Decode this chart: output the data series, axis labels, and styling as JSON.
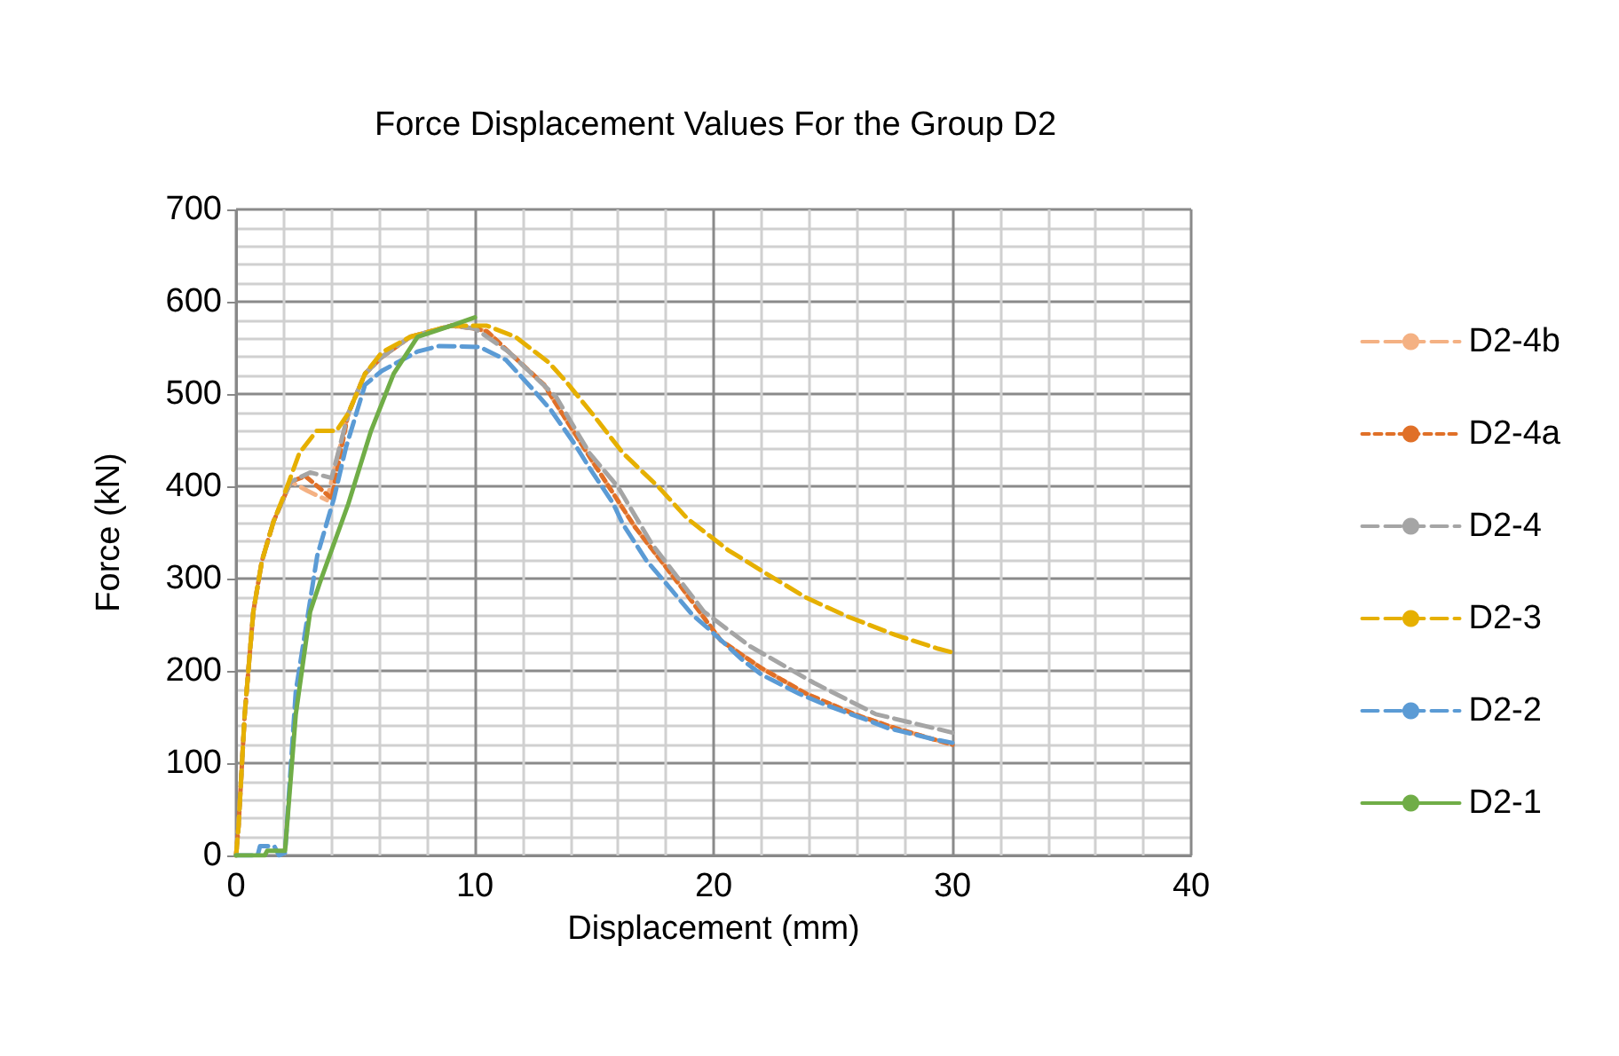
{
  "chart_data": {
    "type": "line",
    "title": "Force Displacement Values For the Group D2",
    "xlabel": "Displacement (mm)",
    "ylabel": "Force (kN)",
    "xlim": [
      0,
      40
    ],
    "xticks": [
      0,
      10,
      20,
      30,
      40
    ],
    "ylim": [
      0,
      700
    ],
    "yticks": [
      0,
      100,
      200,
      300,
      400,
      500,
      600,
      700
    ],
    "grid": true,
    "legend": "right",
    "marker": "none",
    "series": [
      {
        "name": "D2-4b",
        "color": "#f4b183",
        "line_style": "dashed",
        "x": [
          0,
          0.1,
          0.36,
          0.72,
          1.08,
          1.57,
          2.29,
          3.0,
          3.8,
          4.7,
          5.4,
          6.1,
          7.3,
          9.0,
          10.0,
          10.5,
          11.9,
          12.9,
          13.8,
          15.0,
          16.7,
          18.7,
          20.3,
          22.0,
          23.9,
          25.9,
          27.6,
          30.0
        ],
        "values": [
          0,
          31,
          153,
          264,
          319,
          362,
          405,
          395,
          385,
          479,
          522,
          540,
          562,
          574,
          571,
          568,
          534,
          510,
          473,
          424,
          356,
          289,
          233,
          203,
          175,
          153,
          138,
          120
        ]
      },
      {
        "name": "D2-4a",
        "color": "#e07028",
        "line_style": "dotted",
        "x": [
          0,
          0.1,
          0.36,
          0.72,
          1.08,
          1.57,
          2.29,
          2.9,
          4.0,
          4.7,
          5.4,
          6.1,
          7.3,
          9.0,
          10.0,
          10.5,
          11.9,
          12.9,
          13.8,
          15.0,
          16.7,
          18.7,
          20.3,
          22.0,
          23.9,
          25.9,
          27.6,
          30.0
        ],
        "values": [
          0,
          31,
          153,
          264,
          319,
          362,
          405,
          411,
          387,
          479,
          522,
          540,
          562,
          574,
          571,
          568,
          534,
          510,
          473,
          424,
          356,
          289,
          233,
          203,
          175,
          153,
          138,
          120
        ]
      },
      {
        "name": "D2-4",
        "color": "#a5a5a5",
        "line_style": "dashed",
        "x": [
          0,
          0.1,
          0.36,
          0.72,
          1.08,
          1.57,
          2.29,
          3.1,
          4.0,
          4.7,
          5.4,
          6.1,
          7.3,
          9.0,
          10.0,
          11.4,
          13.4,
          14.8,
          16.0,
          17.4,
          19.6,
          21.5,
          24.2,
          26.8,
          29.7,
          30.0
        ],
        "values": [
          0,
          31,
          153,
          264,
          319,
          362,
          405,
          415,
          409,
          479,
          522,
          540,
          562,
          574,
          571,
          546,
          497,
          436,
          399,
          338,
          264,
          227,
          187,
          153,
          135,
          133
        ]
      },
      {
        "name": "D2-3",
        "color": "#e6b000",
        "line_style": "dashed",
        "x": [
          0,
          0.1,
          0.36,
          0.72,
          1.08,
          1.57,
          2.0,
          2.65,
          3.37,
          4.2,
          4.7,
          5.4,
          6.1,
          7.3,
          9.0,
          10.5,
          11.7,
          13.1,
          13.8,
          15.0,
          16.2,
          17.7,
          18.9,
          20.6,
          22.1,
          23.9,
          25.6,
          27.6,
          29.4,
          30.0
        ],
        "values": [
          0,
          31,
          153,
          264,
          319,
          362,
          390,
          436,
          460,
          460,
          479,
          522,
          545,
          562,
          574,
          574,
          562,
          534,
          514,
          476,
          436,
          399,
          365,
          331,
          307,
          279,
          259,
          239,
          224,
          220
        ]
      },
      {
        "name": "D2-2",
        "color": "#5b9bd5",
        "line_style": "dashed",
        "x": [
          0,
          0.9,
          1.0,
          1.6,
          1.8,
          2.05,
          2.5,
          3.4,
          4.1,
          4.6,
          5.4,
          6.1,
          7.6,
          8.5,
          10.2,
          11.3,
          12.5,
          13.2,
          14.2,
          14.8,
          15.8,
          16.2,
          17.2,
          17.9,
          19.1,
          19.9,
          21.2,
          22.0,
          23.6,
          24.7,
          26.4,
          27.3,
          29.2,
          30.0
        ],
        "values": [
          0,
          0,
          10,
          10,
          0,
          3,
          178,
          325,
          387,
          442,
          510,
          525,
          546,
          552,
          551,
          537,
          503,
          482,
          445,
          420,
          381,
          359,
          319,
          298,
          261,
          243,
          212,
          196,
          175,
          163,
          147,
          138,
          126,
          122
        ]
      },
      {
        "name": "D2-1",
        "color": "#70ad47",
        "line_style": "solid",
        "x": [
          0,
          1.2,
          1.3,
          2.05,
          2.5,
          3.1,
          3.5,
          4.7,
          5.65,
          6.6,
          7.6,
          9.0,
          10.0
        ],
        "values": [
          0,
          0,
          5,
          5,
          153,
          264,
          295,
          381,
          460,
          522,
          562,
          574,
          583
        ]
      }
    ]
  }
}
